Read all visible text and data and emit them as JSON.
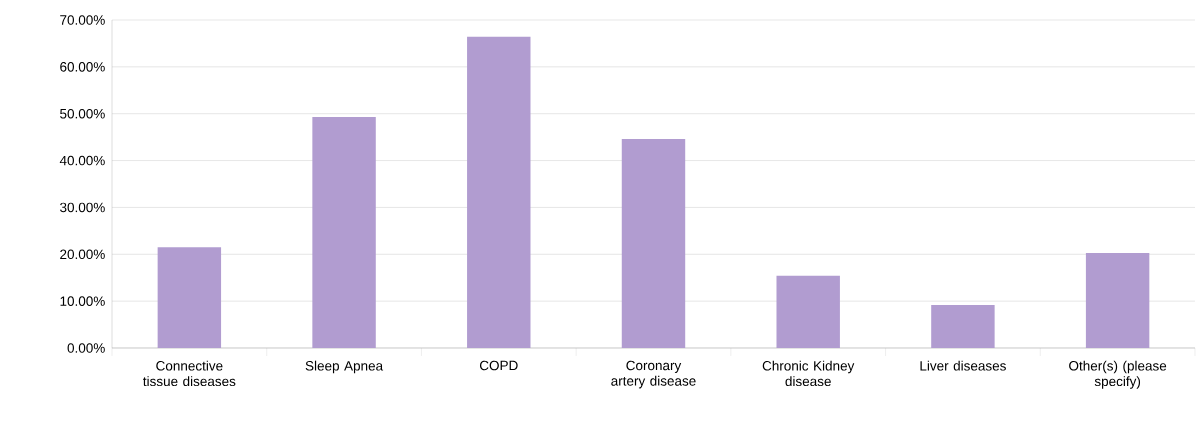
{
  "chart_data": {
    "type": "bar",
    "categories": [
      "Connective tissue diseases",
      "Sleep Apnea",
      "COPD",
      "Coronary artery disease",
      "Chronic Kidney disease",
      "Liver diseases",
      "Other(s) (please specify)"
    ],
    "values": [
      21.5,
      49.3,
      66.4,
      44.6,
      15.4,
      9.2,
      20.3
    ],
    "color": "#b19cd0",
    "ylim": [
      0,
      70
    ],
    "yticks": [
      {
        "value": 0,
        "label": "0.00%"
      },
      {
        "value": 10,
        "label": "10.00%"
      },
      {
        "value": 20,
        "label": "20.00%"
      },
      {
        "value": 30,
        "label": "30.00%"
      },
      {
        "value": 40,
        "label": "40.00%"
      },
      {
        "value": 50,
        "label": "50.00%"
      },
      {
        "value": 60,
        "label": "60.00%"
      },
      {
        "value": 70,
        "label": "70.00%"
      }
    ],
    "grid": "y"
  }
}
